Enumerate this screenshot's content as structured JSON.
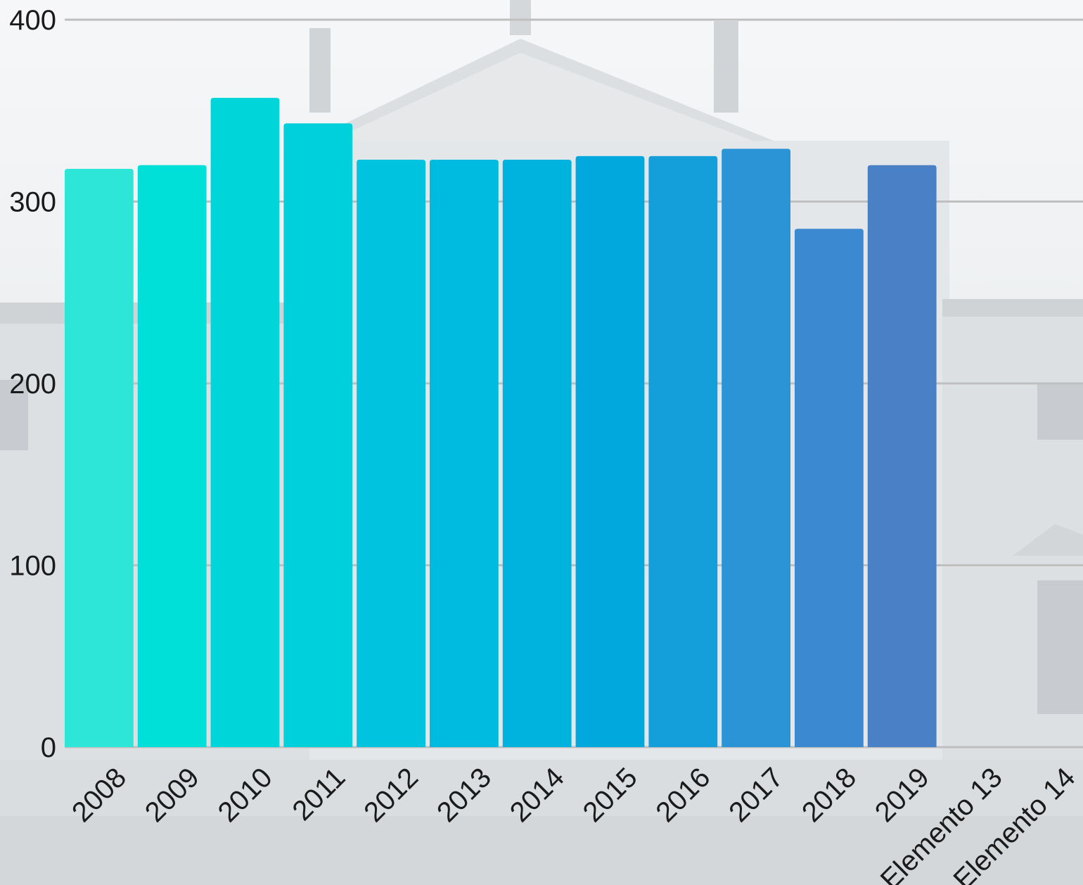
{
  "chart_data": {
    "type": "bar",
    "categories": [
      "2008",
      "2009",
      "2010",
      "2011",
      "2012",
      "2013",
      "2014",
      "2015",
      "2016",
      "2017",
      "2018",
      "2019",
      "Elemento 13",
      "Elemento 14"
    ],
    "values": [
      318,
      320,
      357,
      343,
      323,
      323,
      323,
      325,
      325,
      329,
      285,
      320,
      null,
      null
    ],
    "ylim": [
      0,
      400
    ],
    "yticks": [
      "0",
      "100",
      "200",
      "300",
      "400"
    ],
    "grid": true,
    "legend": "none",
    "title": "",
    "xlabel": "",
    "ylabel": "",
    "bar_colors": [
      "#2ee6d8",
      "#00dfd8",
      "#00d6da",
      "#00cfdc",
      "#00c3df",
      "#00bbe0",
      "#00b3df",
      "#00a8dd",
      "#149fda",
      "#2a94d6",
      "#3a89d1",
      "#4a80c6"
    ],
    "grid_color": "#bfbfbf",
    "background_color": "#e8ebed"
  }
}
